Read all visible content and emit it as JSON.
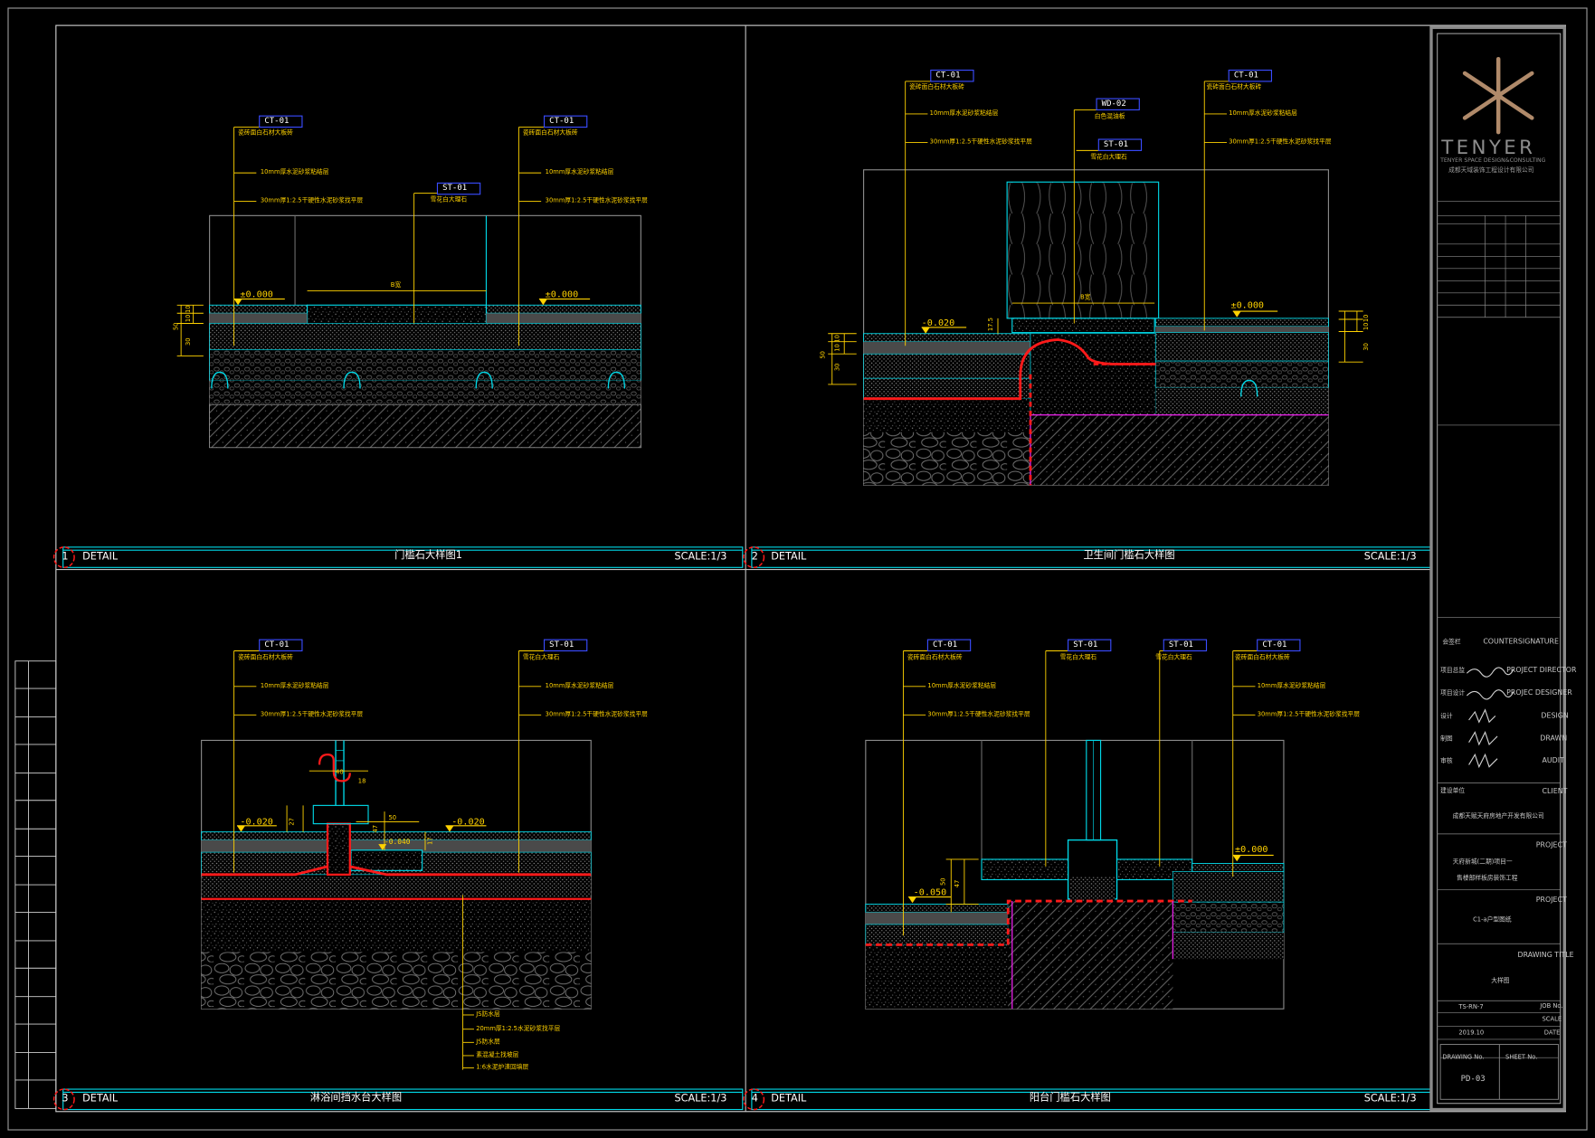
{
  "colors": {
    "background": "#000000",
    "cyan": "#00d9e8",
    "yellow": "#ffd200",
    "red": "#ff1a1a",
    "magenta": "#e020e0",
    "white": "#ffffff",
    "gray": "#8a8a8a",
    "logo": "#b08a6a"
  },
  "details": [
    {
      "number": "1",
      "label": "DETAIL",
      "title": "门槛石大样图1",
      "scale": "SCALE:1/3",
      "tags": [
        {
          "code": "CT-01",
          "note": "瓷砖面白石材大板砖"
        },
        {
          "code": "ST-01",
          "note": "雪花白大理石"
        },
        {
          "code": "CT-01",
          "note": "瓷砖面白石材大板砖"
        }
      ],
      "notes": [
        "10mm厚水泥砂浆粘结层",
        "30mm厚1:2.5干硬性水泥砂浆找平层",
        "10mm厚水泥砂浆粘结层",
        "30mm厚1:2.5干硬性水泥砂浆找平层"
      ],
      "levels": [
        "±0.000",
        "±0.000"
      ],
      "dims": [
        "50",
        "30",
        "10",
        "10",
        "B宽"
      ]
    },
    {
      "number": "2",
      "label": "DETAIL",
      "title": "卫生间门槛石大样图",
      "scale": "SCALE:1/3",
      "tags": [
        {
          "code": "CT-01",
          "note": "瓷砖面白石材大板砖"
        },
        {
          "code": "WD-02",
          "note": "白色混油板"
        },
        {
          "code": "ST-01",
          "note": "雪花白大理石"
        },
        {
          "code": "CT-01",
          "note": "瓷砖面白石材大板砖"
        }
      ],
      "notes": [
        "10mm厚水泥砂浆粘结层",
        "30mm厚1:2.5干硬性水泥砂浆找平层",
        "10mm厚水泥砂浆粘结层",
        "30mm厚1:2.5干硬性水泥砂浆找平层"
      ],
      "levels": [
        "-0.020",
        "±0.000"
      ],
      "dims": [
        "50",
        "30",
        "10",
        "10",
        "17.5",
        "10",
        "10",
        "30",
        "B宽"
      ]
    },
    {
      "number": "3",
      "label": "DETAIL",
      "title": "淋浴间挡水台大样图",
      "scale": "SCALE:1/3",
      "tags": [
        {
          "code": "CT-01",
          "note": "瓷砖面白石材大板砖"
        },
        {
          "code": "ST-01",
          "note": "雪花白大理石"
        }
      ],
      "notes": [
        "10mm厚水泥砂浆粘结层",
        "30mm厚1:2.5干硬性水泥砂浆找平层",
        "10mm厚水泥砂浆粘结层",
        "30mm厚1:2.5干硬性水泥砂浆找平层"
      ],
      "stack": [
        "JS防水层",
        "20mm厚1:2.5水泥砂浆找平层",
        "JS防水层",
        "素混凝土找坡层",
        "1:6水泥炉渣回填层"
      ],
      "levels": [
        "-0.020",
        "-0.040",
        "-0.020"
      ],
      "dims": [
        "40",
        "18",
        "27",
        "50",
        "47",
        "17"
      ]
    },
    {
      "number": "4",
      "label": "DETAIL",
      "title": "阳台门槛石大样图",
      "scale": "SCALE:1/3",
      "tags": [
        {
          "code": "CT-01",
          "note": "瓷砖面白石材大板砖"
        },
        {
          "code": "ST-01",
          "note": "雪花白大理石"
        },
        {
          "code": "ST-01",
          "note": "雪花白大理石"
        },
        {
          "code": "CT-01",
          "note": "瓷砖面白石材大板砖"
        }
      ],
      "notes": [
        "10mm厚水泥砂浆粘结层",
        "30mm厚1:2.5干硬性水泥砂浆找平层",
        "10mm厚水泥砂浆粘结层",
        "30mm厚1:2.5干硬性水泥砂浆找平层"
      ],
      "levels": [
        "-0.050",
        "±0.000"
      ],
      "dims": [
        "50",
        "47"
      ]
    }
  ],
  "titleblock": {
    "brand": "TENYER",
    "brand_sub": "TENYER SPACE DESIGN&CONSULTING",
    "company": "成都天域装饰工程设计有限公司",
    "countersign_cn": "会签栏",
    "countersign_en": "COUNTERSIGNATURE",
    "roles": [
      {
        "cn": "项目总监",
        "en": "PROJECT DIRECTOR"
      },
      {
        "cn": "项目设计",
        "en": "PROJEC DESIGNER"
      },
      {
        "cn": "设计",
        "en": "DESIGN"
      },
      {
        "cn": "制图",
        "en": "DRAWN"
      },
      {
        "cn": "审核",
        "en": "AUDIT"
      }
    ],
    "client_label_cn": "建设单位",
    "client_label_en": "CLIENT",
    "client": "成都天赋天府房地产开发有限公司",
    "project_label_en": "PROJECT",
    "project_line1": "天府新城(二期)项目一",
    "project_line2": "售楼部样板房装饰工程",
    "sub_project_label_en": "PROJECT",
    "sub_project": "C1-a户型图纸",
    "drawing_title_label_en": "DRAWING TITLE",
    "drawing_title": "大样图",
    "job_label_en": "JOB No.",
    "job_value": "TS-RN-7",
    "scale_label_en": "SCALE",
    "date_label_en": "DATE",
    "date_value": "2019.10",
    "drawing_no_label": "DRAWING No.",
    "drawing_no": "PD-03",
    "sheet_no_label": "SHEET No."
  }
}
